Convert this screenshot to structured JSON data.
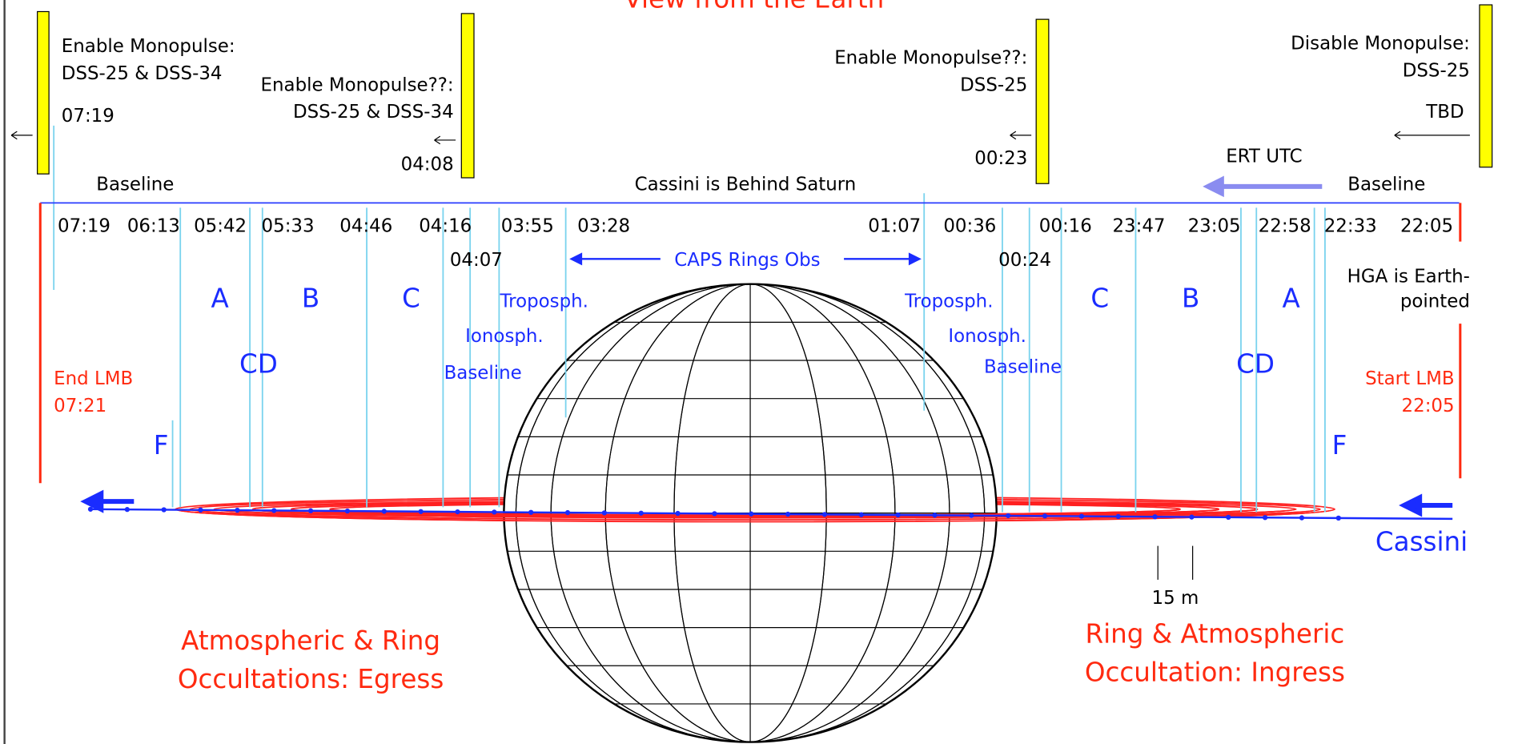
{
  "title": "View from the Earth",
  "monopulse": [
    {
      "lines": [
        "Enable Monopulse:",
        "DSS-25 & DSS-34"
      ],
      "time": "07:19"
    },
    {
      "lines": [
        "Enable Monopulse??:",
        "DSS-25 & DSS-34"
      ],
      "time": "04:08"
    },
    {
      "lines": [
        "Enable Monopulse??:",
        "DSS-25"
      ],
      "time": "00:23"
    },
    {
      "lines": [
        "Disable Monopulse:",
        "DSS-25"
      ],
      "time": "TBD"
    }
  ],
  "timeline": {
    "left_label": "Baseline",
    "center_label": "Cassini is Behind Saturn",
    "direction_label": "ERT UTC",
    "right_label": "Baseline",
    "times": [
      "07:19",
      "06:13",
      "05:42",
      "05:33",
      "04:46",
      "04:16",
      "03:55",
      "03:28",
      "01:07",
      "00:36",
      "00:16",
      "23:47",
      "23:05",
      "22:58",
      "22:33",
      "22:05"
    ],
    "second_row": [
      "04:07",
      "00:24"
    ]
  },
  "caps": "CAPS Rings Obs",
  "rings_left": [
    "A",
    "B",
    "C",
    "CD",
    "F"
  ],
  "rings_right": [
    "C",
    "B",
    "A",
    "CD",
    "F"
  ],
  "atmosphere_left": [
    "Troposph.",
    "Ionosph.",
    "Baseline"
  ],
  "atmosphere_right": [
    "Troposph.",
    "Ionosph.",
    "Baseline"
  ],
  "hga": [
    "HGA is Earth-",
    "pointed"
  ],
  "end_lmb": [
    "End LMB",
    "07:21"
  ],
  "start_lmb": [
    "Start LMB",
    "22:05"
  ],
  "spacecraft": "Cassini",
  "scale": "15 m",
  "egress": [
    "Atmospheric & Ring",
    "Occultations: Egress"
  ],
  "ingress": [
    "Ring & Atmospheric",
    "Occultation: Ingress"
  ]
}
